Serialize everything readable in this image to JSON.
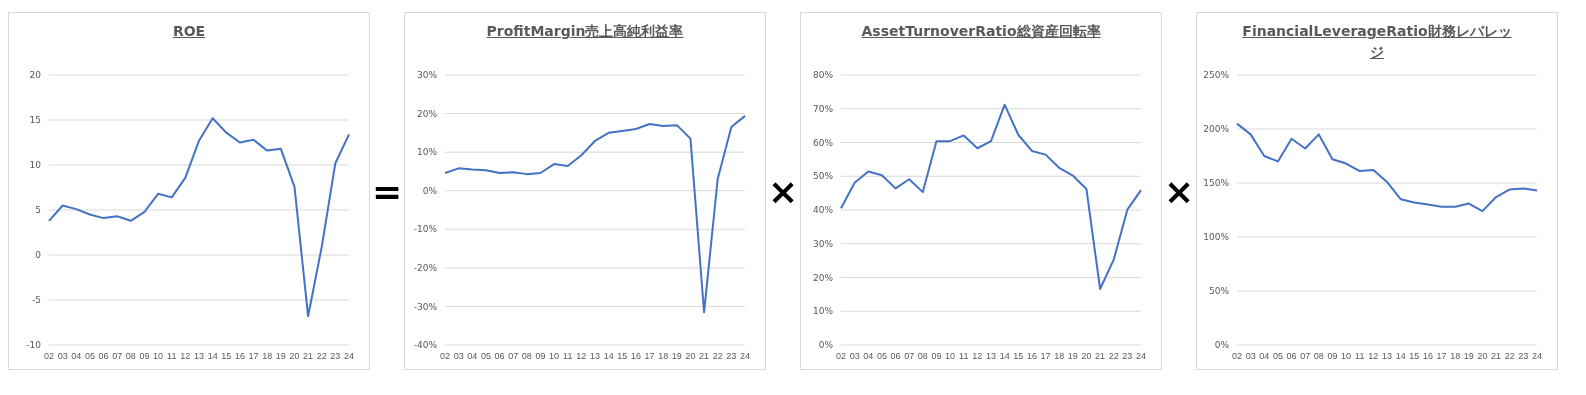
{
  "chart_data": [
    {
      "type": "line",
      "title": "ROE",
      "categories": [
        "02",
        "03",
        "04",
        "05",
        "06",
        "07",
        "08",
        "09",
        "10",
        "11",
        "12",
        "13",
        "14",
        "15",
        "16",
        "17",
        "18",
        "19",
        "20",
        "21",
        "22",
        "23",
        "24"
      ],
      "series": [
        {
          "color": "#4472c4",
          "values": [
            3.8,
            5.5,
            5.1,
            4.5,
            4.1,
            4.3,
            3.8,
            4.8,
            6.8,
            6.4,
            8.6,
            12.7,
            15.2,
            13.6,
            12.5,
            12.8,
            11.6,
            11.8,
            7.6,
            -6.8,
            0.9,
            10.2,
            13.4
          ]
        }
      ],
      "ylim": [
        -10,
        20
      ],
      "yticks": [
        -10,
        -5,
        0,
        5,
        10,
        15,
        20
      ],
      "grid": "y",
      "legend": false,
      "marker": "none",
      "line_style": "solid"
    },
    {
      "type": "line",
      "title": "ProfitMargin売上高純利益率",
      "annotations": [
        "="
      ],
      "categories": [
        "02",
        "03",
        "04",
        "05",
        "06",
        "07",
        "08",
        "09",
        "10",
        "11",
        "12",
        "13",
        "14",
        "15",
        "16",
        "17",
        "18",
        "19",
        "20",
        "21",
        "22",
        "23",
        "24"
      ],
      "series": [
        {
          "color": "#4472c4",
          "values": [
            4.6,
            5.8,
            5.5,
            5.3,
            4.6,
            4.8,
            4.3,
            4.6,
            6.9,
            6.4,
            9.2,
            12.9,
            15.0,
            15.5,
            16.0,
            17.3,
            16.8,
            17.0,
            13.5,
            -31.5,
            3.1,
            16.5,
            19.4
          ]
        }
      ],
      "ylim": [
        -40,
        30
      ],
      "yticks": [
        {
          "value": -40,
          "label": "-40%"
        },
        {
          "value": -30,
          "label": "-30%"
        },
        {
          "value": -20,
          "label": "-20%"
        },
        {
          "value": -10,
          "label": "-10%"
        },
        {
          "value": 0,
          "label": "0%"
        },
        {
          "value": 10,
          "label": "10%"
        },
        {
          "value": 20,
          "label": "20%"
        },
        {
          "value": 30,
          "label": "30%"
        }
      ],
      "grid": "y",
      "legend": false,
      "marker": "none",
      "line_style": "solid"
    },
    {
      "type": "line",
      "title": "AssetTurnoverRatio総資産回転率",
      "annotations": [
        "×"
      ],
      "categories": [
        "02",
        "03",
        "04",
        "05",
        "06",
        "07",
        "08",
        "09",
        "10",
        "11",
        "12",
        "13",
        "14",
        "15",
        "16",
        "17",
        "18",
        "19",
        "20",
        "21",
        "22",
        "23",
        "24"
      ],
      "series": [
        {
          "color": "#4472c4",
          "values": [
            40.5,
            48.1,
            51.4,
            50.3,
            46.4,
            49.1,
            45.3,
            60.4,
            60.4,
            62.1,
            58.3,
            60.4,
            71.2,
            62.3,
            57.5,
            56.4,
            52.5,
            50.2,
            46.2,
            16.6,
            25.3,
            40.1,
            45.9
          ]
        }
      ],
      "ylim": [
        0,
        80
      ],
      "yticks": [
        {
          "value": 0,
          "label": "0%"
        },
        {
          "value": 10,
          "label": "10%"
        },
        {
          "value": 20,
          "label": "20%"
        },
        {
          "value": 30,
          "label": "30%"
        },
        {
          "value": 40,
          "label": "40%"
        },
        {
          "value": 50,
          "label": "50%"
        },
        {
          "value": 60,
          "label": "60%"
        },
        {
          "value": 70,
          "label": "70%"
        },
        {
          "value": 80,
          "label": "80%"
        }
      ],
      "grid": "y",
      "legend": false,
      "marker": "none",
      "line_style": "solid"
    },
    {
      "type": "line",
      "title": "FinancialLeverageRatio財務レバレッジ",
      "annotations": [
        "×"
      ],
      "categories": [
        "02",
        "03",
        "04",
        "05",
        "06",
        "07",
        "08",
        "09",
        "10",
        "11",
        "12",
        "13",
        "14",
        "15",
        "16",
        "17",
        "18",
        "19",
        "20",
        "21",
        "22",
        "23",
        "24"
      ],
      "series": [
        {
          "color": "#4472c4",
          "values": [
            205,
            195,
            175,
            170,
            191,
            182,
            195,
            172,
            168,
            161,
            162,
            151,
            135,
            132,
            130,
            128,
            128,
            131,
            124,
            137,
            144,
            145,
            143
          ]
        }
      ],
      "ylim": [
        0,
        250
      ],
      "yticks": [
        {
          "value": 0,
          "label": "0%"
        },
        {
          "value": 50,
          "label": "50%"
        },
        {
          "value": 100,
          "label": "100%"
        },
        {
          "value": 150,
          "label": "150%"
        },
        {
          "value": 200,
          "label": "200%"
        },
        {
          "value": 250,
          "label": "250%"
        }
      ],
      "grid": "y",
      "legend": false,
      "marker": "none",
      "line_style": "solid"
    }
  ]
}
